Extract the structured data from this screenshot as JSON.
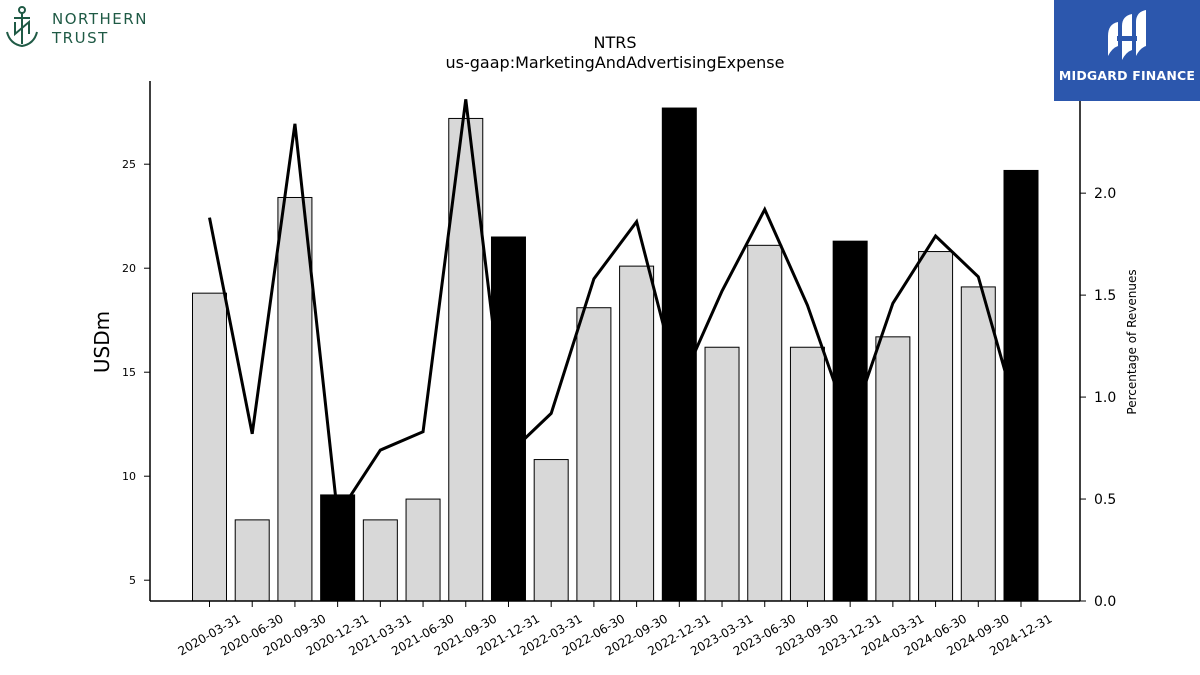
{
  "branding": {
    "left_logo": {
      "line1": "NORTHERN",
      "line2": "TRUST",
      "color": "#1f5a45"
    },
    "right_logo": {
      "text": "MIDGARD FINANCE",
      "background": "#2c57ad"
    }
  },
  "chart_data": {
    "type": "bar",
    "title": "NTRS",
    "subtitle": "us-gaap:MarketingAndAdvertisingExpense",
    "ylabel": "USDm",
    "y2label": "Percentage of Revenues",
    "ylim": [
      4,
      29
    ],
    "yticks": [
      5,
      10,
      15,
      20,
      25
    ],
    "y2lim": [
      0.0,
      2.55
    ],
    "y2ticks": [
      "0.0",
      "0.5",
      "1.0",
      "1.5",
      "2.0"
    ],
    "categories": [
      "2020-03-31",
      "2020-06-30",
      "2020-09-30",
      "2020-12-31",
      "2021-03-31",
      "2021-06-30",
      "2021-09-30",
      "2021-12-31",
      "2022-03-31",
      "2022-06-30",
      "2022-09-30",
      "2022-12-31",
      "2023-03-31",
      "2023-06-30",
      "2023-09-30",
      "2023-12-31",
      "2024-03-31",
      "2024-06-30",
      "2024-09-30",
      "2024-12-31"
    ],
    "series": [
      {
        "type": "bar",
        "axis": "left",
        "values": [
          18.8,
          7.9,
          23.4,
          9.1,
          7.9,
          8.9,
          27.2,
          21.5,
          10.8,
          18.1,
          20.1,
          27.7,
          16.2,
          21.1,
          16.2,
          21.3,
          16.7,
          20.8,
          19.1,
          24.7
        ],
        "colors": [
          "#d8d8d8",
          "#d8d8d8",
          "#d8d8d8",
          "#000000",
          "#d8d8d8",
          "#d8d8d8",
          "#d8d8d8",
          "#000000",
          "#d8d8d8",
          "#d8d8d8",
          "#d8d8d8",
          "#000000",
          "#d8d8d8",
          "#d8d8d8",
          "#d8d8d8",
          "#000000",
          "#d8d8d8",
          "#d8d8d8",
          "#d8d8d8",
          "#000000"
        ]
      },
      {
        "type": "line",
        "axis": "right",
        "color": "#000000",
        "values": [
          1.88,
          0.82,
          2.34,
          0.42,
          0.74,
          0.83,
          2.46,
          0.72,
          0.92,
          1.58,
          1.86,
          1.05,
          1.52,
          1.92,
          1.45,
          0.85,
          1.46,
          1.79,
          1.59,
          0.85
        ]
      }
    ],
    "grid": false,
    "legend": "none"
  }
}
